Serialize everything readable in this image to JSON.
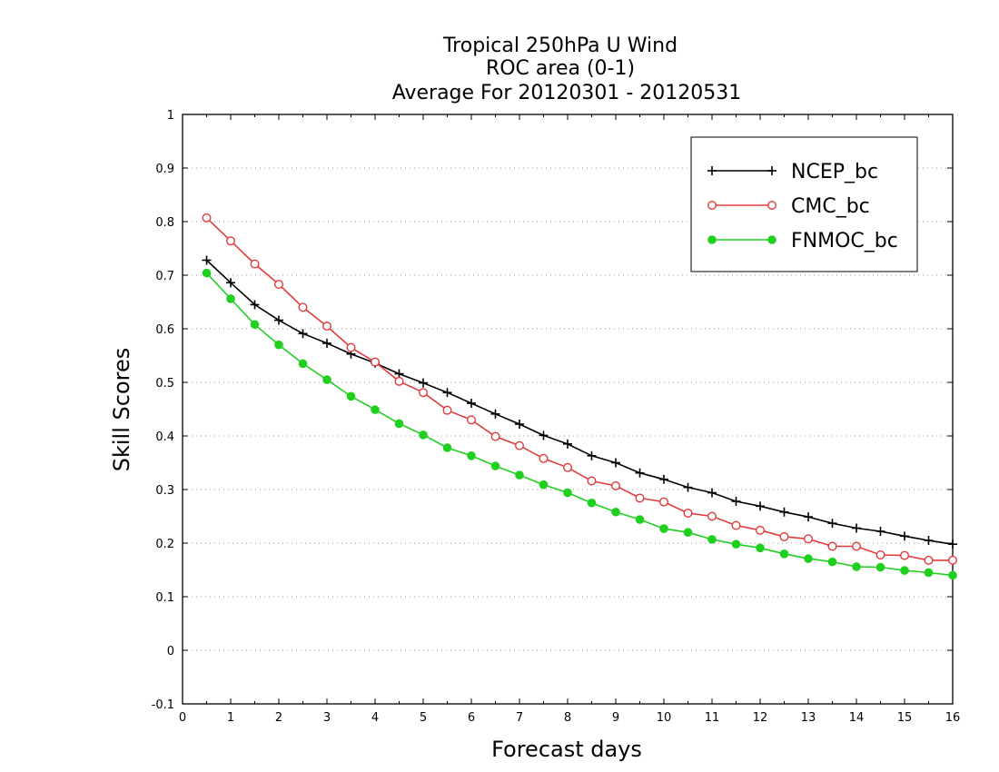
{
  "chart_data": {
    "type": "line",
    "title": [
      "Tropical 250hPa U Wind",
      "ROC area (0-1)",
      "Average For 20120301 - 20120531"
    ],
    "xlabel": "Forecast days",
    "ylabel": "Skill Scores",
    "xlim": [
      0,
      16
    ],
    "ylim": [
      -0.1,
      1
    ],
    "xticks": [
      0,
      1,
      2,
      3,
      4,
      5,
      6,
      7,
      8,
      9,
      10,
      11,
      12,
      13,
      14,
      15,
      16
    ],
    "yticks": [
      -0.1,
      0,
      0.1,
      0.2,
      0.3,
      0.4,
      0.5,
      0.6,
      0.7,
      0.8,
      0.9,
      1
    ],
    "ytick_labels": [
      "-0.1",
      "0",
      "0.1",
      "0.2",
      "0.3",
      "0.4",
      "0.5",
      "0.6",
      "0.7",
      "0.8",
      "0.9",
      "1"
    ],
    "grid": "horizontal dotted",
    "legend_position": "top-right",
    "x": [
      0.5,
      1,
      1.5,
      2,
      2.5,
      3,
      3.5,
      4,
      4.5,
      5,
      5.5,
      6,
      6.5,
      7,
      7.5,
      8,
      8.5,
      9,
      9.5,
      10,
      10.5,
      11,
      11.5,
      12,
      12.5,
      13,
      13.5,
      14,
      14.5,
      15,
      15.5,
      16
    ],
    "series": [
      {
        "name": "NCEP_bc",
        "color": "#000000",
        "marker": "plus",
        "values": [
          0.728,
          0.686,
          0.645,
          0.616,
          0.591,
          0.573,
          0.553,
          0.536,
          0.516,
          0.499,
          0.481,
          0.461,
          0.441,
          0.422,
          0.401,
          0.385,
          0.363,
          0.35,
          0.331,
          0.319,
          0.304,
          0.294,
          0.278,
          0.269,
          0.258,
          0.249,
          0.237,
          0.228,
          0.222,
          0.213,
          0.205,
          0.198
        ]
      },
      {
        "name": "CMC_bc",
        "color": "#e03c3c",
        "marker": "open-circle",
        "values": [
          0.807,
          0.764,
          0.721,
          0.683,
          0.64,
          0.605,
          0.565,
          0.538,
          0.502,
          0.481,
          0.448,
          0.43,
          0.399,
          0.382,
          0.358,
          0.341,
          0.316,
          0.307,
          0.284,
          0.277,
          0.256,
          0.25,
          0.233,
          0.224,
          0.212,
          0.208,
          0.194,
          0.194,
          0.178,
          0.177,
          0.168,
          0.168
        ]
      },
      {
        "name": "FNMOC_bc",
        "color": "#1fd01f",
        "marker": "filled-circle",
        "values": [
          0.704,
          0.656,
          0.608,
          0.57,
          0.535,
          0.505,
          0.474,
          0.449,
          0.423,
          0.402,
          0.378,
          0.363,
          0.344,
          0.327,
          0.309,
          0.294,
          0.275,
          0.258,
          0.244,
          0.227,
          0.22,
          0.207,
          0.198,
          0.191,
          0.18,
          0.171,
          0.165,
          0.156,
          0.155,
          0.149,
          0.145,
          0.14
        ]
      }
    ]
  }
}
